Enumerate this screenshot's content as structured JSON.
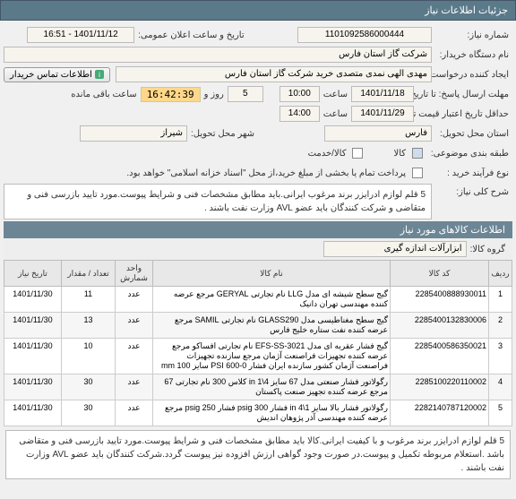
{
  "watermark": "۱۴۰۱-۰۸-۱۱",
  "header": {
    "title": "جزئیات اطلاعات نیاز"
  },
  "form": {
    "need_no_label": "شماره نیاز:",
    "need_no": "1101092586000444",
    "announce_label": "تاریخ و ساعت اعلان عمومی:",
    "announce": "1401/11/12 - 16:51",
    "org_label": "نام دستگاه خریدار:",
    "org": "شرکت گاز استان فارس",
    "requester_label": "ایجاد کننده درخواست:",
    "requester": "مهدی الهی نمدی متصدی خرید شرکت گاز استان فارس",
    "contact_btn": "اطلاعات تماس خریدار",
    "deadline_label": "مهلت ارسال پاسخ: تا تاریخ:",
    "deadline_date": "1401/11/18",
    "time_label": "ساعت",
    "deadline_time": "10:00",
    "remain_left": "5",
    "remain_days": "روز و",
    "countdown": "16:42:39",
    "remain_suffix": "ساعت باقی مانده",
    "valid_from_label": "حداقل تاریخ اعتبار قیمت تا تاریخ:",
    "valid_date": "1401/11/29",
    "valid_time": "14:00",
    "province_label": "استان محل تحویل:",
    "province": "فارس",
    "city_label": "شهر محل تحویل:",
    "city": "شیراز",
    "category_label": "طبقه بندی موضوعی:",
    "cat_goods": "کالا",
    "cat_service": "کالا/خدمت",
    "purchase_type_label": "نوع فرآیند خرید :",
    "purchase_note": "پرداخت تمام یا بخشی از مبلغ خرید،از محل \"اسناد خزانه اسلامی\" خواهد بود.",
    "desc_label": "شرح کلی نیاز:",
    "desc": "5 قلم لوازم ادرایزر برند مرغوب ایرانی.باید مطابق مشخصات فنی و شرایط پیوست.مورد تایید بازرسی فنی و متقاضی و شرکت کنندگان باید عضو AVL وزارت نفت باشند ."
  },
  "goods_section": {
    "title": "اطلاعات کالاهای مورد نیاز",
    "group_label": "گروه کالا:",
    "group_value": "ابزارآلات اندازه گیری"
  },
  "table": {
    "columns": [
      "ردیف",
      "کد کالا",
      "نام کالا",
      "واحد شمارش",
      "تعداد / مقدار",
      "تاریخ نیاز"
    ],
    "rows": [
      {
        "idx": "1",
        "code": "2285400888930011",
        "name": "گیج سطح شیشه ای مدل LLG نام تجارتی GERYAL مرجع عرضه کننده مهندسی تهران دانیک",
        "unit": "عدد",
        "qty": "11",
        "date": "1401/11/30"
      },
      {
        "idx": "2",
        "code": "2285400132830006",
        "name": "گیج سطح مغناطیسی مدل GLASS290 نام تجارتی SAMIL مرجع عرضه کننده نفت ستاره خلیج فارس",
        "unit": "عدد",
        "qty": "13",
        "date": "1401/11/30"
      },
      {
        "idx": "3",
        "code": "2285400586350021",
        "name": "گیج فشار عقربه ای مدل EFS-SS-3021 نام تجارتی افساکو مرجع عرضه کننده تجهیزات فراصنعت آژمان مرجع سازنده تجهیزات فراصنعت آژمان کشور سازنده ایران فشار PSI 600-0 سایز mm 100",
        "unit": "عدد",
        "qty": "10",
        "date": "1401/11/30"
      },
      {
        "idx": "4",
        "code": "2285100220110002",
        "name": "رگولاتور فشار صنعتی مدل 67 سایز in 1\\4 کلاس 300 نام تجارتی 67 مرجع عرضه کننده تجهیز صنعت پاکستان",
        "unit": "عدد",
        "qty": "30",
        "date": "1401/11/30"
      },
      {
        "idx": "5",
        "code": "2282140787120002",
        "name": "رگولاتور فشار بالا سایز in 4\\1 فشار psig 300 فشار psig 250 مرجع عرضه کننده مهندسی آذر پژوهان اندیش",
        "unit": "عدد",
        "qty": "30",
        "date": "1401/11/30"
      }
    ]
  },
  "footer": {
    "text": "5 قلم لوازم ادرایزر برند مرغوب و با کیفیت ایرانی.کالا باید مطابق مشخصات فنی و شرایط پیوست.مورد تایید بازرسی فنی و متقاضی باشد .استعلام مربوطه تکمیل و پیوست.در صورت وجود گواهی ارزش افزوده نیز پیوست گردد.شرکت کنندگان باید عضو AVL وزارت نفت باشند ."
  }
}
